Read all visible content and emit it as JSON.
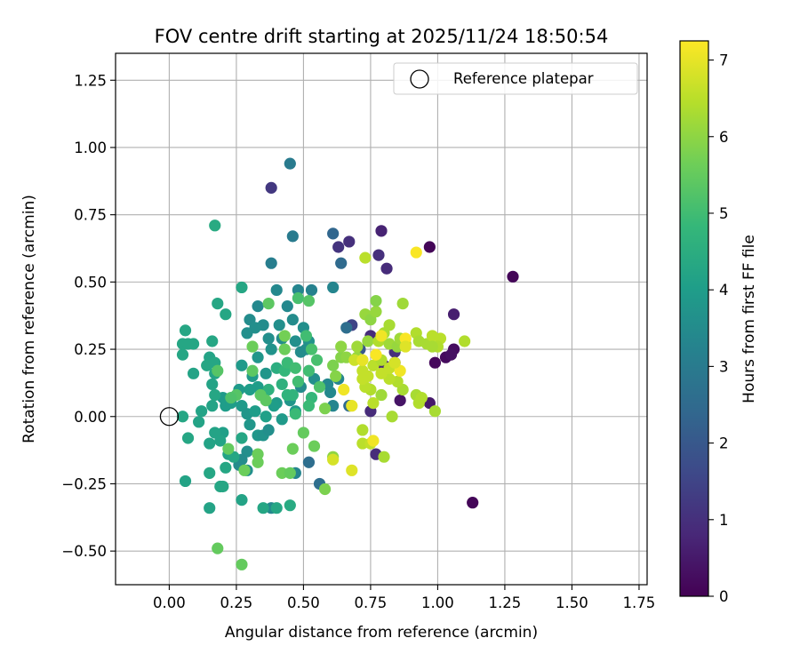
{
  "chart_data": {
    "type": "scatter",
    "title": "FOV centre drift starting at 2025/11/24 18:50:54",
    "xlabel": "Angular distance from reference (arcmin)",
    "ylabel": "Rotation from reference (arcmin)",
    "xlim": [
      -0.2,
      1.78
    ],
    "ylim": [
      -0.625,
      1.35
    ],
    "xticks": [
      0.0,
      0.25,
      0.5,
      0.75,
      1.0,
      1.25,
      1.5,
      1.75
    ],
    "xtick_labels": [
      "0.00",
      "0.25",
      "0.50",
      "0.75",
      "1.00",
      "1.25",
      "1.50",
      "1.75"
    ],
    "yticks": [
      -0.5,
      -0.25,
      0.0,
      0.25,
      0.5,
      0.75,
      1.0,
      1.25
    ],
    "ytick_labels": [
      "−0.50",
      "−0.25",
      "0.00",
      "0.25",
      "0.50",
      "0.75",
      "1.00",
      "1.25"
    ],
    "grid": true,
    "legend": {
      "position": "upper right",
      "entries": [
        "Reference platepar"
      ]
    },
    "reference_point": {
      "x": 0.0,
      "y": 0.0
    },
    "colorbar": {
      "label": "Hours from first FF file",
      "colormap": "viridis",
      "range": [
        0,
        7.25
      ],
      "ticks": [
        0,
        1,
        2,
        3,
        4,
        5,
        6,
        7
      ],
      "tick_labels": [
        "0",
        "1",
        "2",
        "3",
        "4",
        "5",
        "6",
        "7"
      ]
    },
    "colormap_stops": [
      "#440154",
      "#482878",
      "#3e4989",
      "#31688e",
      "#26828e",
      "#1f9e89",
      "#35b779",
      "#6ece58",
      "#b5de2b",
      "#fde725"
    ],
    "points": [
      [
        1.28,
        0.52,
        0.1
      ],
      [
        1.13,
        -0.32,
        0.1
      ],
      [
        0.97,
        0.63,
        0.1
      ],
      [
        0.99,
        0.2,
        0.15
      ],
      [
        1.03,
        0.22,
        0.2
      ],
      [
        1.06,
        0.25,
        0.25
      ],
      [
        1.05,
        0.23,
        0.3
      ],
      [
        1.06,
        0.38,
        0.6
      ],
      [
        0.97,
        0.05,
        0.5
      ],
      [
        0.86,
        0.06,
        0.4
      ],
      [
        0.79,
        0.69,
        0.7
      ],
      [
        0.81,
        0.55,
        0.9
      ],
      [
        0.78,
        0.6,
        1.0
      ],
      [
        0.67,
        0.65,
        1.0
      ],
      [
        0.63,
        0.63,
        1.1
      ],
      [
        0.38,
        0.85,
        1.2
      ],
      [
        0.77,
        -0.14,
        0.9
      ],
      [
        0.75,
        0.02,
        0.9
      ],
      [
        0.8,
        0.19,
        0.8
      ],
      [
        0.84,
        0.2,
        0.7
      ],
      [
        0.84,
        0.24,
        1.0
      ],
      [
        0.75,
        0.3,
        0.9
      ],
      [
        0.71,
        0.25,
        0.8
      ],
      [
        0.68,
        0.34,
        1.5
      ],
      [
        0.71,
        0.25,
        2.0
      ],
      [
        0.61,
        0.68,
        2.4
      ],
      [
        0.64,
        0.57,
        2.5
      ],
      [
        0.66,
        0.33,
        2.6
      ],
      [
        0.67,
        0.04,
        2.5
      ],
      [
        0.56,
        -0.25,
        2.6
      ],
      [
        0.52,
        -0.17,
        2.6
      ],
      [
        0.45,
        0.94,
        3.0
      ],
      [
        0.46,
        0.67,
        3.0
      ],
      [
        0.38,
        0.57,
        3.1
      ],
      [
        0.61,
        0.48,
        3.3
      ],
      [
        0.53,
        0.47,
        3.2
      ],
      [
        0.48,
        0.47,
        3.3
      ],
      [
        0.44,
        0.41,
        3.4
      ],
      [
        0.46,
        0.36,
        3.5
      ],
      [
        0.4,
        0.47,
        3.4
      ],
      [
        0.33,
        0.41,
        3.4
      ],
      [
        0.3,
        0.36,
        3.5
      ],
      [
        0.35,
        0.34,
        3.5
      ],
      [
        0.32,
        0.33,
        3.6
      ],
      [
        0.29,
        0.31,
        3.6
      ],
      [
        0.37,
        0.29,
        3.6
      ],
      [
        0.41,
        0.34,
        3.6
      ],
      [
        0.42,
        0.29,
        3.5
      ],
      [
        0.5,
        0.33,
        3.6
      ],
      [
        0.52,
        0.28,
        3.7
      ],
      [
        0.51,
        0.25,
        3.6
      ],
      [
        0.49,
        0.24,
        3.5
      ],
      [
        0.47,
        0.28,
        3.6
      ],
      [
        0.38,
        0.25,
        3.7
      ],
      [
        0.33,
        0.22,
        3.8
      ],
      [
        0.36,
        0.16,
        3.8
      ],
      [
        0.31,
        0.15,
        3.9
      ],
      [
        0.27,
        0.19,
        3.9
      ],
      [
        0.33,
        0.11,
        4.0
      ],
      [
        0.3,
        0.1,
        4.0
      ],
      [
        0.26,
        0.1,
        3.9
      ],
      [
        0.2,
        0.07,
        3.9
      ],
      [
        0.21,
        0.04,
        4.0
      ],
      [
        0.27,
        0.04,
        3.9
      ],
      [
        0.29,
        0.01,
        3.8
      ],
      [
        0.3,
        -0.03,
        3.8
      ],
      [
        0.33,
        -0.07,
        3.8
      ],
      [
        0.35,
        -0.07,
        3.7
      ],
      [
        0.37,
        -0.05,
        3.6
      ],
      [
        0.29,
        -0.13,
        3.6
      ],
      [
        0.27,
        -0.16,
        3.5
      ],
      [
        0.29,
        -0.2,
        3.6
      ],
      [
        0.26,
        -0.18,
        3.5
      ],
      [
        0.38,
        -0.34,
        3.4
      ],
      [
        0.47,
        -0.21,
        3.3
      ],
      [
        0.59,
        0.12,
        3.4
      ],
      [
        0.63,
        0.14,
        3.3
      ],
      [
        0.6,
        0.09,
        3.4
      ],
      [
        0.61,
        0.04,
        3.3
      ],
      [
        0.54,
        0.14,
        3.6
      ],
      [
        0.49,
        0.11,
        3.5
      ],
      [
        0.45,
        0.06,
        3.8
      ],
      [
        0.4,
        0.05,
        3.9
      ],
      [
        0.42,
        -0.01,
        3.9
      ],
      [
        0.47,
        0.02,
        3.9
      ],
      [
        0.39,
        0.04,
        4.0
      ],
      [
        0.36,
        0.0,
        4.1
      ],
      [
        0.32,
        0.02,
        4.0
      ],
      [
        0.23,
        0.05,
        4.0
      ],
      [
        0.2,
        -0.06,
        4.1
      ],
      [
        0.17,
        -0.06,
        4.2
      ],
      [
        0.15,
        -0.1,
        4.2
      ],
      [
        0.19,
        -0.09,
        4.2
      ],
      [
        0.22,
        -0.14,
        4.2
      ],
      [
        0.24,
        -0.15,
        4.3
      ],
      [
        0.27,
        -0.08,
        4.3
      ],
      [
        0.21,
        -0.19,
        4.3
      ],
      [
        0.19,
        -0.26,
        4.3
      ],
      [
        0.2,
        -0.26,
        4.3
      ],
      [
        0.15,
        -0.21,
        4.3
      ],
      [
        0.15,
        -0.34,
        4.2
      ],
      [
        0.27,
        -0.31,
        4.2
      ],
      [
        0.35,
        -0.34,
        4.3
      ],
      [
        0.4,
        -0.34,
        4.3
      ],
      [
        0.45,
        -0.33,
        4.4
      ],
      [
        0.06,
        -0.24,
        4.2
      ],
      [
        0.07,
        -0.08,
        4.3
      ],
      [
        0.11,
        -0.02,
        4.2
      ],
      [
        0.12,
        0.02,
        4.2
      ],
      [
        0.16,
        0.04,
        4.2
      ],
      [
        0.17,
        0.08,
        4.3
      ],
      [
        0.16,
        0.12,
        4.2
      ],
      [
        0.17,
        0.16,
        4.2
      ],
      [
        0.15,
        0.22,
        4.2
      ],
      [
        0.09,
        0.16,
        4.2
      ],
      [
        0.05,
        0.23,
        4.3
      ],
      [
        0.05,
        0.27,
        4.3
      ],
      [
        0.07,
        0.27,
        4.3
      ],
      [
        0.09,
        0.27,
        4.3
      ],
      [
        0.06,
        0.32,
        4.3
      ],
      [
        0.18,
        0.42,
        4.3
      ],
      [
        0.21,
        0.38,
        4.3
      ],
      [
        0.17,
        0.2,
        4.3
      ],
      [
        0.16,
        0.28,
        4.3
      ],
      [
        0.14,
        0.19,
        4.3
      ],
      [
        0.05,
        0.0,
        4.3
      ],
      [
        0.27,
        0.48,
        4.3
      ],
      [
        0.17,
        0.71,
        4.4
      ],
      [
        0.4,
        0.18,
        4.5
      ],
      [
        0.42,
        0.12,
        4.6
      ],
      [
        0.37,
        0.1,
        4.6
      ],
      [
        0.44,
        0.08,
        4.7
      ],
      [
        0.46,
        0.08,
        4.7
      ],
      [
        0.53,
        0.07,
        4.8
      ],
      [
        0.52,
        0.04,
        4.9
      ],
      [
        0.47,
        0.01,
        4.9
      ],
      [
        0.43,
        0.17,
        4.8
      ],
      [
        0.44,
        0.2,
        4.9
      ],
      [
        0.47,
        0.18,
        5.0
      ],
      [
        0.48,
        0.13,
        5.0
      ],
      [
        0.52,
        0.17,
        5.0
      ],
      [
        0.51,
        0.3,
        5.0
      ],
      [
        0.53,
        0.25,
        5.1
      ],
      [
        0.55,
        0.21,
        5.1
      ],
      [
        0.56,
        0.11,
        5.2
      ],
      [
        0.48,
        0.44,
        5.1
      ],
      [
        0.52,
        0.43,
        5.3
      ],
      [
        0.37,
        0.42,
        5.4
      ],
      [
        0.36,
        0.06,
        5.4
      ],
      [
        0.34,
        0.08,
        5.4
      ],
      [
        0.25,
        0.08,
        5.3
      ],
      [
        0.23,
        0.07,
        5.2
      ],
      [
        0.18,
        0.17,
        5.3
      ],
      [
        0.31,
        0.17,
        5.4
      ],
      [
        0.31,
        0.26,
        5.6
      ],
      [
        0.43,
        0.25,
        5.6
      ],
      [
        0.43,
        0.3,
        5.7
      ],
      [
        0.5,
        -0.06,
        5.5
      ],
      [
        0.54,
        -0.11,
        5.6
      ],
      [
        0.46,
        -0.12,
        5.6
      ],
      [
        0.42,
        -0.21,
        5.6
      ],
      [
        0.45,
        -0.21,
        5.5
      ],
      [
        0.33,
        -0.14,
        5.6
      ],
      [
        0.33,
        -0.17,
        5.6
      ],
      [
        0.28,
        -0.2,
        5.6
      ],
      [
        0.22,
        -0.12,
        5.5
      ],
      [
        0.18,
        -0.49,
        5.5
      ],
      [
        0.27,
        -0.55,
        5.5
      ],
      [
        0.58,
        -0.27,
        5.8
      ],
      [
        0.61,
        -0.15,
        6.0
      ],
      [
        0.58,
        0.03,
        5.8
      ],
      [
        0.62,
        0.15,
        5.9
      ],
      [
        0.61,
        0.19,
        5.8
      ],
      [
        0.64,
        0.22,
        5.9
      ],
      [
        0.64,
        0.26,
        6.0
      ],
      [
        0.66,
        0.22,
        6.0
      ],
      [
        0.7,
        0.22,
        6.1
      ],
      [
        0.7,
        0.26,
        6.2
      ],
      [
        0.74,
        0.28,
        6.1
      ],
      [
        0.73,
        0.38,
        6.1
      ],
      [
        0.75,
        0.36,
        6.0
      ],
      [
        0.77,
        0.39,
        6.1
      ],
      [
        0.77,
        0.43,
        5.9
      ],
      [
        0.73,
        0.59,
        6.5
      ],
      [
        0.87,
        0.42,
        6.2
      ],
      [
        0.78,
        0.28,
        6.4
      ],
      [
        0.8,
        0.31,
        6.3
      ],
      [
        0.82,
        0.34,
        6.3
      ],
      [
        0.82,
        0.27,
        6.2
      ],
      [
        0.85,
        0.26,
        6.1
      ],
      [
        0.86,
        0.29,
        6.2
      ],
      [
        0.88,
        0.27,
        6.3
      ],
      [
        0.92,
        0.31,
        6.4
      ],
      [
        0.93,
        0.28,
        6.3
      ],
      [
        0.96,
        0.27,
        6.3
      ],
      [
        0.98,
        0.3,
        6.5
      ],
      [
        1.01,
        0.29,
        6.5
      ],
      [
        1.0,
        0.26,
        6.4
      ],
      [
        0.98,
        0.26,
        6.3
      ],
      [
        1.1,
        0.28,
        6.4
      ],
      [
        0.92,
        0.08,
        6.3
      ],
      [
        0.94,
        0.07,
        6.4
      ],
      [
        0.93,
        0.05,
        6.4
      ],
      [
        0.99,
        0.02,
        6.3
      ],
      [
        0.83,
        0.0,
        6.3
      ],
      [
        0.87,
        0.1,
        6.3
      ],
      [
        0.85,
        0.13,
        6.4
      ],
      [
        0.82,
        0.14,
        6.5
      ],
      [
        0.79,
        0.08,
        6.2
      ],
      [
        0.75,
        0.1,
        6.4
      ],
      [
        0.73,
        0.11,
        6.5
      ],
      [
        0.72,
        0.14,
        6.6
      ],
      [
        0.74,
        0.15,
        6.6
      ],
      [
        0.72,
        0.17,
        6.6
      ],
      [
        0.69,
        0.21,
        6.7
      ],
      [
        0.72,
        0.21,
        6.8
      ],
      [
        0.76,
        0.19,
        6.5
      ],
      [
        0.79,
        0.21,
        6.4
      ],
      [
        0.79,
        0.16,
        6.6
      ],
      [
        0.82,
        0.18,
        6.6
      ],
      [
        0.76,
        0.05,
        6.5
      ],
      [
        0.72,
        -0.05,
        6.4
      ],
      [
        0.72,
        -0.1,
        6.5
      ],
      [
        0.75,
        -0.1,
        6.6
      ],
      [
        0.8,
        -0.15,
        6.3
      ],
      [
        0.61,
        -0.16,
        6.8
      ],
      [
        0.68,
        -0.2,
        6.9
      ],
      [
        0.65,
        0.1,
        7.1
      ],
      [
        0.68,
        0.04,
        7.0
      ],
      [
        0.76,
        -0.09,
        7.1
      ],
      [
        0.77,
        0.23,
        7.2
      ],
      [
        0.79,
        0.3,
        7.1
      ],
      [
        0.86,
        0.17,
        7.1
      ],
      [
        0.88,
        0.29,
        7.2
      ],
      [
        0.92,
        0.61,
        7.2
      ],
      [
        0.72,
        0.21,
        7.0
      ],
      [
        0.84,
        0.2,
        6.8
      ],
      [
        0.88,
        0.26,
        6.9
      ]
    ]
  }
}
